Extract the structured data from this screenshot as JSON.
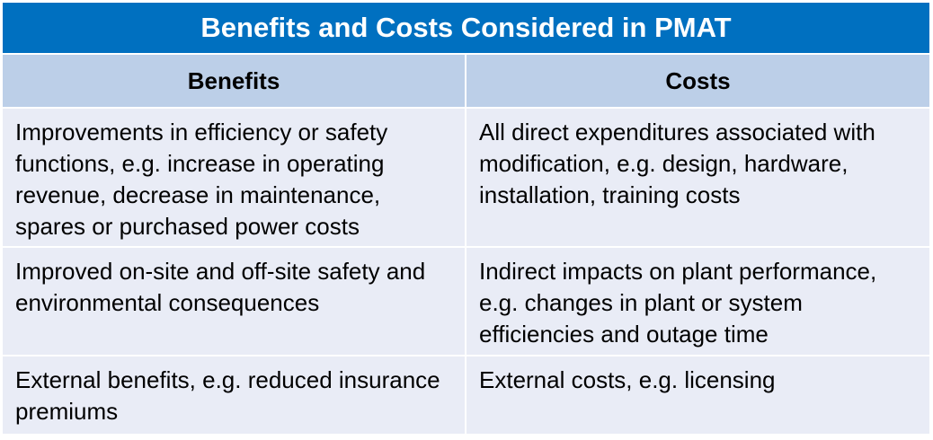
{
  "table": {
    "title": "Benefits and Costs Considered in PMAT",
    "headers": [
      "Benefits",
      "Costs"
    ],
    "rows": [
      {
        "benefit": "Improvements in efficiency or safety functions, e.g. increase in operating revenue, decrease in maintenance, spares or purchased power costs",
        "cost": "All direct expenditures associated with modification, e.g. design, hardware, installation, training costs"
      },
      {
        "benefit": "Improved on-site and off-site safety and environmental consequences",
        "cost": "Indirect impacts on plant performance, e.g. changes in plant or system efficiencies and outage time"
      },
      {
        "benefit": "External benefits, e.g. reduced insurance premiums",
        "cost": "External costs, e.g. licensing"
      }
    ]
  },
  "colors": {
    "title_bg": "#0070c0",
    "header_bg": "#bccfe8",
    "cell_bg": "#e9ecf6"
  }
}
